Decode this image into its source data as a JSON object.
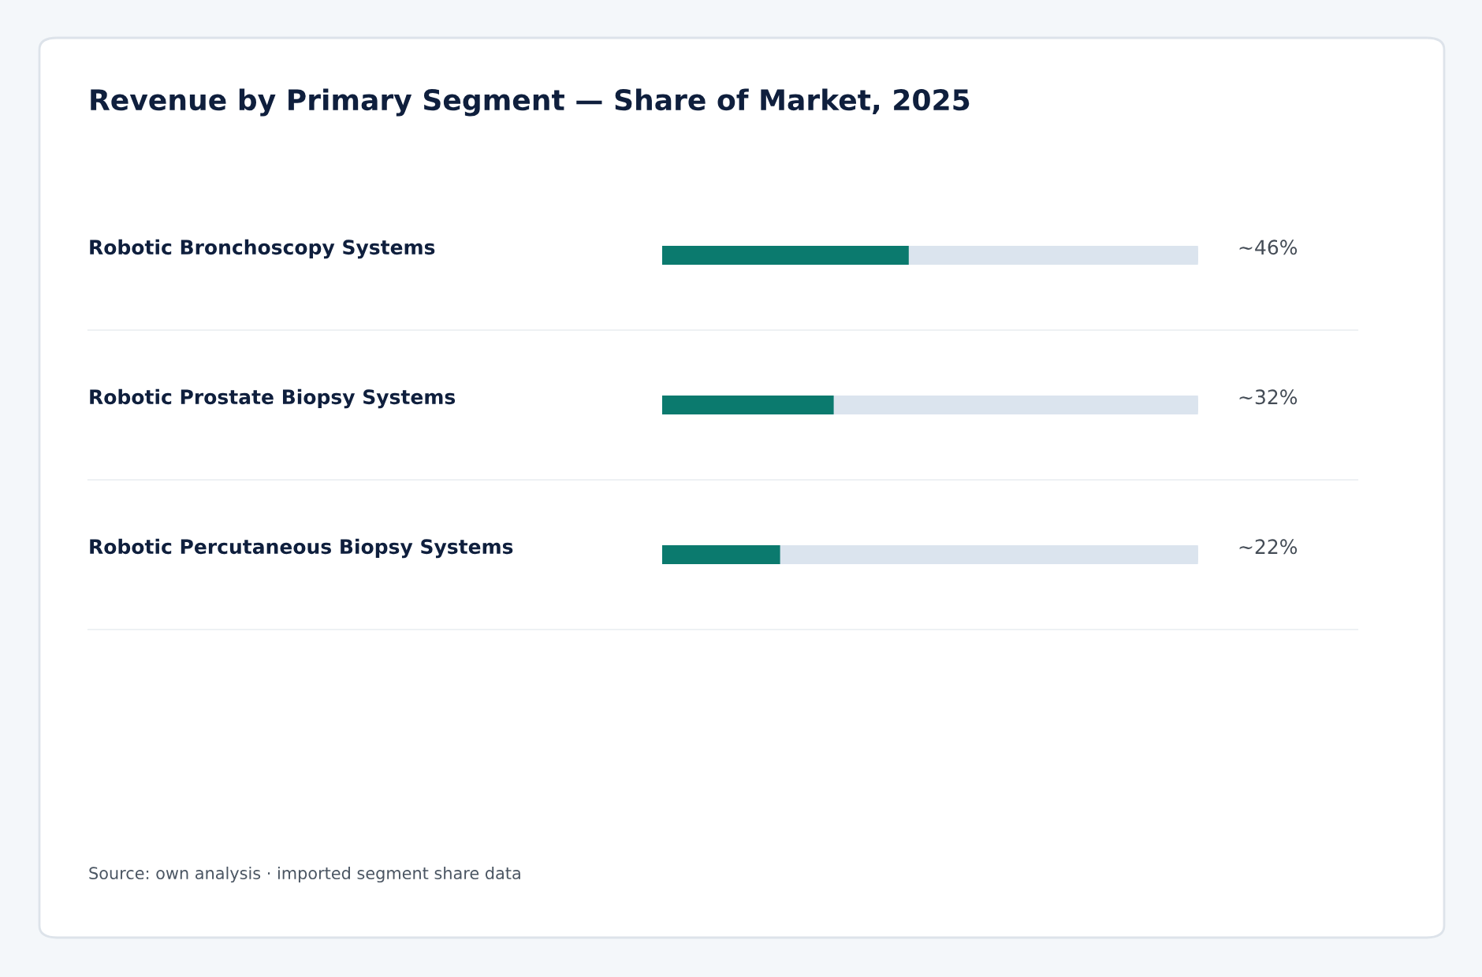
{
  "chart_data": {
    "type": "bar",
    "orientation": "horizontal",
    "title": "Revenue by Primary Segment — Share of Market, 2025",
    "categories": [
      "Robotic Bronchoscopy Systems",
      "Robotic Prostate Biopsy Systems",
      "Robotic Percutaneous Biopsy Systems"
    ],
    "values": [
      46,
      32,
      22
    ],
    "value_labels": [
      "~46%",
      "~32%",
      "~22%"
    ],
    "color": "#0b7a6e",
    "xlim": [
      0,
      100
    ],
    "legend": false,
    "annotations": [
      "Source: own analysis · imported segment share data"
    ]
  }
}
